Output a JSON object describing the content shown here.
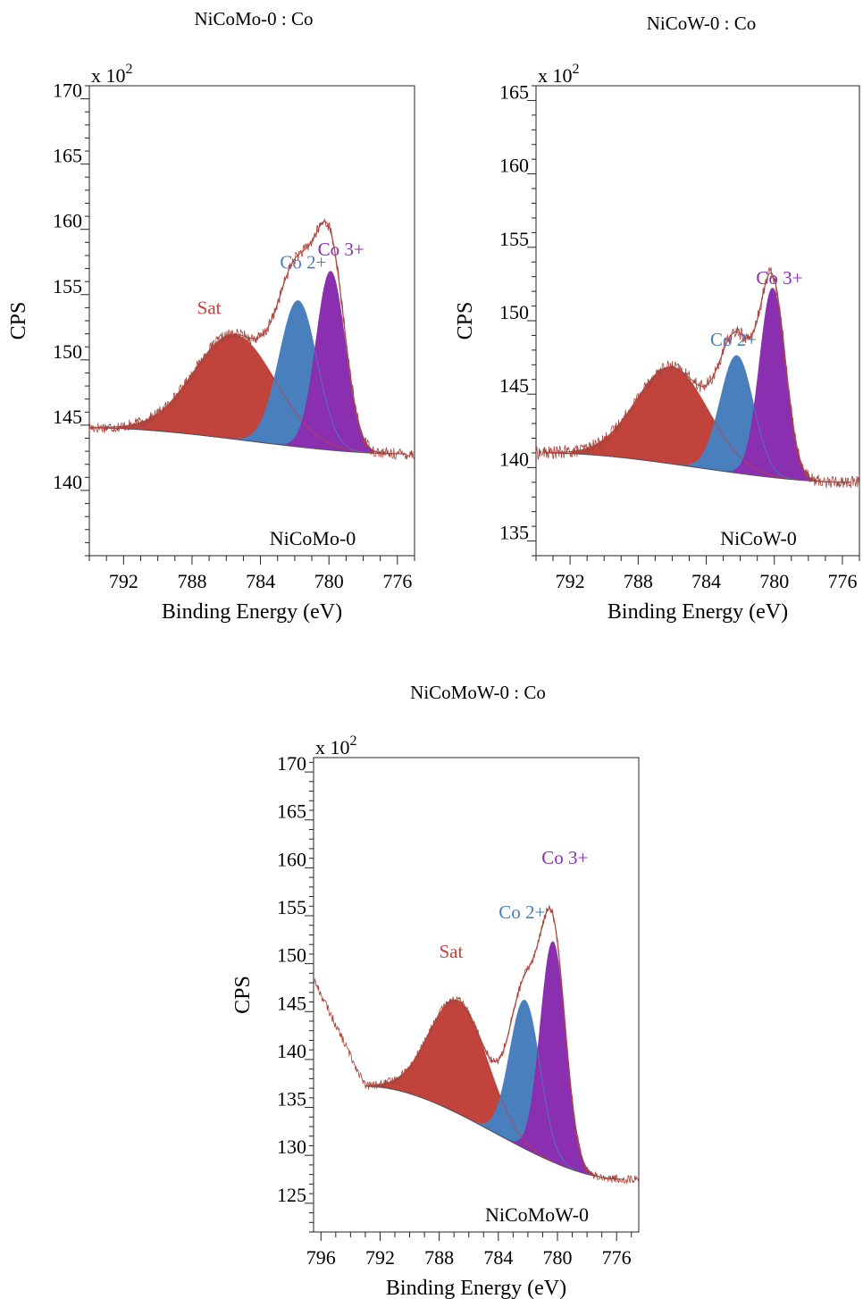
{
  "chart_data": [
    {
      "type": "area",
      "title": "NiCoMo-0 : Co",
      "sample_label": "NiCoMo-0",
      "xlabel": "Binding Energy (eV)",
      "ylabel": "CPS",
      "y_multiplier": "x 10",
      "y_multiplier_exp": "2",
      "x_reversed": true,
      "xlim": [
        794.0,
        775.0
      ],
      "ylim": [
        135.0,
        171.0
      ],
      "xticks": [
        792,
        788,
        784,
        780,
        776
      ],
      "yticks": [
        140,
        145,
        150,
        155,
        160,
        165,
        170
      ],
      "grid": false,
      "range": [
        794.0,
        775.5
      ],
      "background": {
        "left": 144.8,
        "right": 142.8
      },
      "peaks": [
        {
          "name": "Sat",
          "center": 785.5,
          "height": 8.0,
          "fwhm": 5.6,
          "color": "#c0433c",
          "label_x": 787.0,
          "label_y": 153.5
        },
        {
          "name": "Co 2+",
          "center": 781.8,
          "height": 11.2,
          "fwhm": 2.6,
          "color": "#4a7fbe",
          "label_x": 781.5,
          "label_y": 157.0
        },
        {
          "name": "Co 3+",
          "center": 779.9,
          "height": 13.7,
          "fwhm": 2.0,
          "color": "#8a2fb0",
          "label_x": 779.3,
          "label_y": 158.0
        }
      ]
    },
    {
      "type": "area",
      "title": "NiCoW-0 : Co",
      "sample_label": "NiCoW-0",
      "xlabel": "Binding Energy (eV)",
      "ylabel": "CPS",
      "y_multiplier": "x 10",
      "y_multiplier_exp": "2",
      "x_reversed": true,
      "xlim": [
        794.0,
        775.0
      ],
      "ylim": [
        134.0,
        166.0
      ],
      "xticks": [
        792,
        788,
        784,
        780,
        776
      ],
      "yticks": [
        135,
        140,
        145,
        150,
        155,
        160,
        165
      ],
      "grid": false,
      "range": [
        793.5,
        775.5
      ],
      "background": {
        "left": 141.0,
        "right": 139.0
      },
      "peaks": [
        {
          "name": "Sat",
          "center": 786.0,
          "height": 6.6,
          "fwhm": 5.0,
          "color": "#c0433c",
          "label_x": 786.5,
          "label_y": 145.3
        },
        {
          "name": "Co 2+",
          "center": 782.2,
          "height": 8.0,
          "fwhm": 2.3,
          "color": "#4a7fbe",
          "label_x": 782.4,
          "label_y": 148.3
        },
        {
          "name": "Co 3+",
          "center": 780.1,
          "height": 12.9,
          "fwhm": 1.8,
          "color": "#8a2fb0",
          "label_x": 779.7,
          "label_y": 152.5
        }
      ]
    },
    {
      "type": "area",
      "title": "NiCoMoW-0 : Co",
      "sample_label": "NiCoMoW-0",
      "xlabel": "Binding Energy (eV)",
      "ylabel": "CPS",
      "y_multiplier": "x 10",
      "y_multiplier_exp": "2",
      "x_reversed": true,
      "xlim": [
        796.5,
        774.5
      ],
      "ylim": [
        122.0,
        171.5
      ],
      "xticks": [
        796,
        792,
        788,
        784,
        780,
        776
      ],
      "yticks": [
        125,
        130,
        135,
        140,
        145,
        150,
        155,
        160,
        165,
        170
      ],
      "grid": false,
      "range": [
        793.0,
        775.5
      ],
      "background": {
        "left": 137.2,
        "right": 127.5
      },
      "peaks": [
        {
          "name": "Sat",
          "center": 786.7,
          "height": 11.8,
          "fwhm": 4.6,
          "color": "#c0433c",
          "label_x": 787.2,
          "label_y": 150.6
        },
        {
          "name": "Co 2+",
          "center": 782.2,
          "height": 15.5,
          "fwhm": 2.4,
          "color": "#4a7fbe",
          "label_x": 782.4,
          "label_y": 154.7
        },
        {
          "name": "Co 3+",
          "center": 780.3,
          "height": 23.0,
          "fwhm": 2.0,
          "color": "#8a2fb0",
          "label_x": 779.5,
          "label_y": 160.4
        }
      ]
    }
  ]
}
